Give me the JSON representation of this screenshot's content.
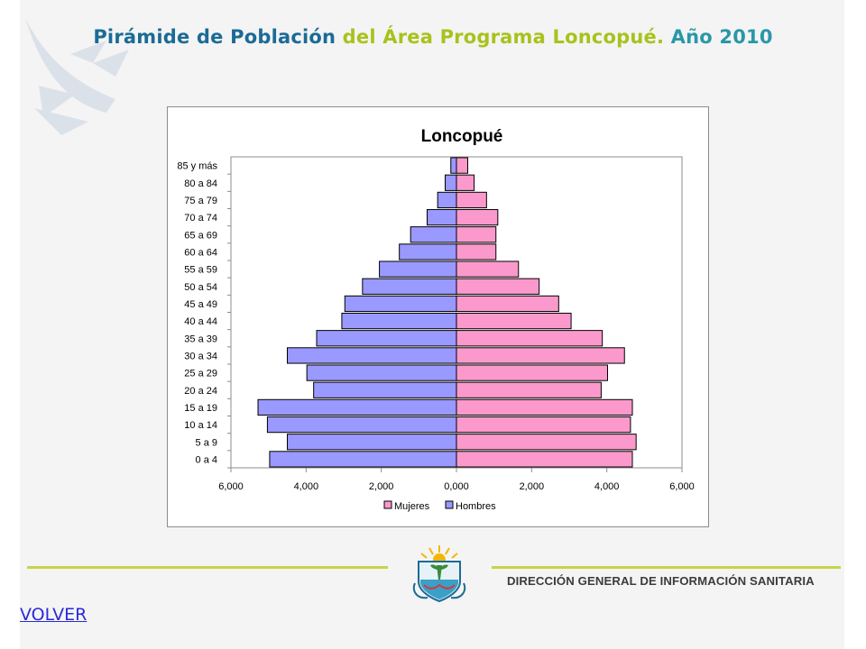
{
  "slide": {
    "title_part1": "Pirámide de Población",
    "title_part2": "del Área Programa Loncopué.",
    "title_part3": "Año 2010"
  },
  "footer": {
    "organization": "DIRECCIÓN GENERAL DE INFORMACIÓN SANITARIA",
    "volver_label": "VOLVER"
  },
  "colors": {
    "title_blue": "#1b6b96",
    "title_green": "#a9c21c",
    "mujeres": "#fb99cc",
    "hombres": "#9999ff",
    "footer_line": "#c6d44a"
  },
  "chart_data": {
    "type": "bar",
    "orientation": "horizontal",
    "title": "Loncopué",
    "categories": [
      "0 a 4",
      "5 a 9",
      "10 a 14",
      "15 a 19",
      "20 a 24",
      "25 a 29",
      "30 a 34",
      "35 a 39",
      "40 a 44",
      "45 a 49",
      "50 a 54",
      "55 a 59",
      "60 a 64",
      "65 a 69",
      "70 a 74",
      "75 a 79",
      "80 a 84",
      "85 y más"
    ],
    "series": [
      {
        "name": "Mujeres",
        "color": "#fb99cc",
        "values": [
          4.68,
          4.78,
          4.63,
          4.68,
          3.85,
          4.02,
          4.47,
          3.88,
          3.05,
          2.72,
          2.2,
          1.65,
          1.05,
          1.05,
          1.1,
          0.8,
          0.47,
          0.3
        ]
      },
      {
        "name": "Hombres",
        "color": "#9999ff",
        "values": [
          -4.97,
          -4.5,
          -5.03,
          -5.28,
          -3.8,
          -3.98,
          -4.5,
          -3.72,
          -3.05,
          -2.97,
          -2.5,
          -2.05,
          -1.52,
          -1.22,
          -0.78,
          -0.5,
          -0.3,
          -0.15
        ]
      }
    ],
    "xlim": [
      -6,
      6
    ],
    "xticks": [
      -6,
      -4,
      -2,
      0,
      2,
      4,
      6
    ],
    "xtick_labels": [
      "6,000",
      "4,000",
      "2,000",
      "0,000",
      "2,000",
      "4,000",
      "6,000"
    ],
    "grid": false,
    "legend": {
      "position": "bottom",
      "entries": [
        "Mujeres",
        "Hombres"
      ]
    }
  }
}
